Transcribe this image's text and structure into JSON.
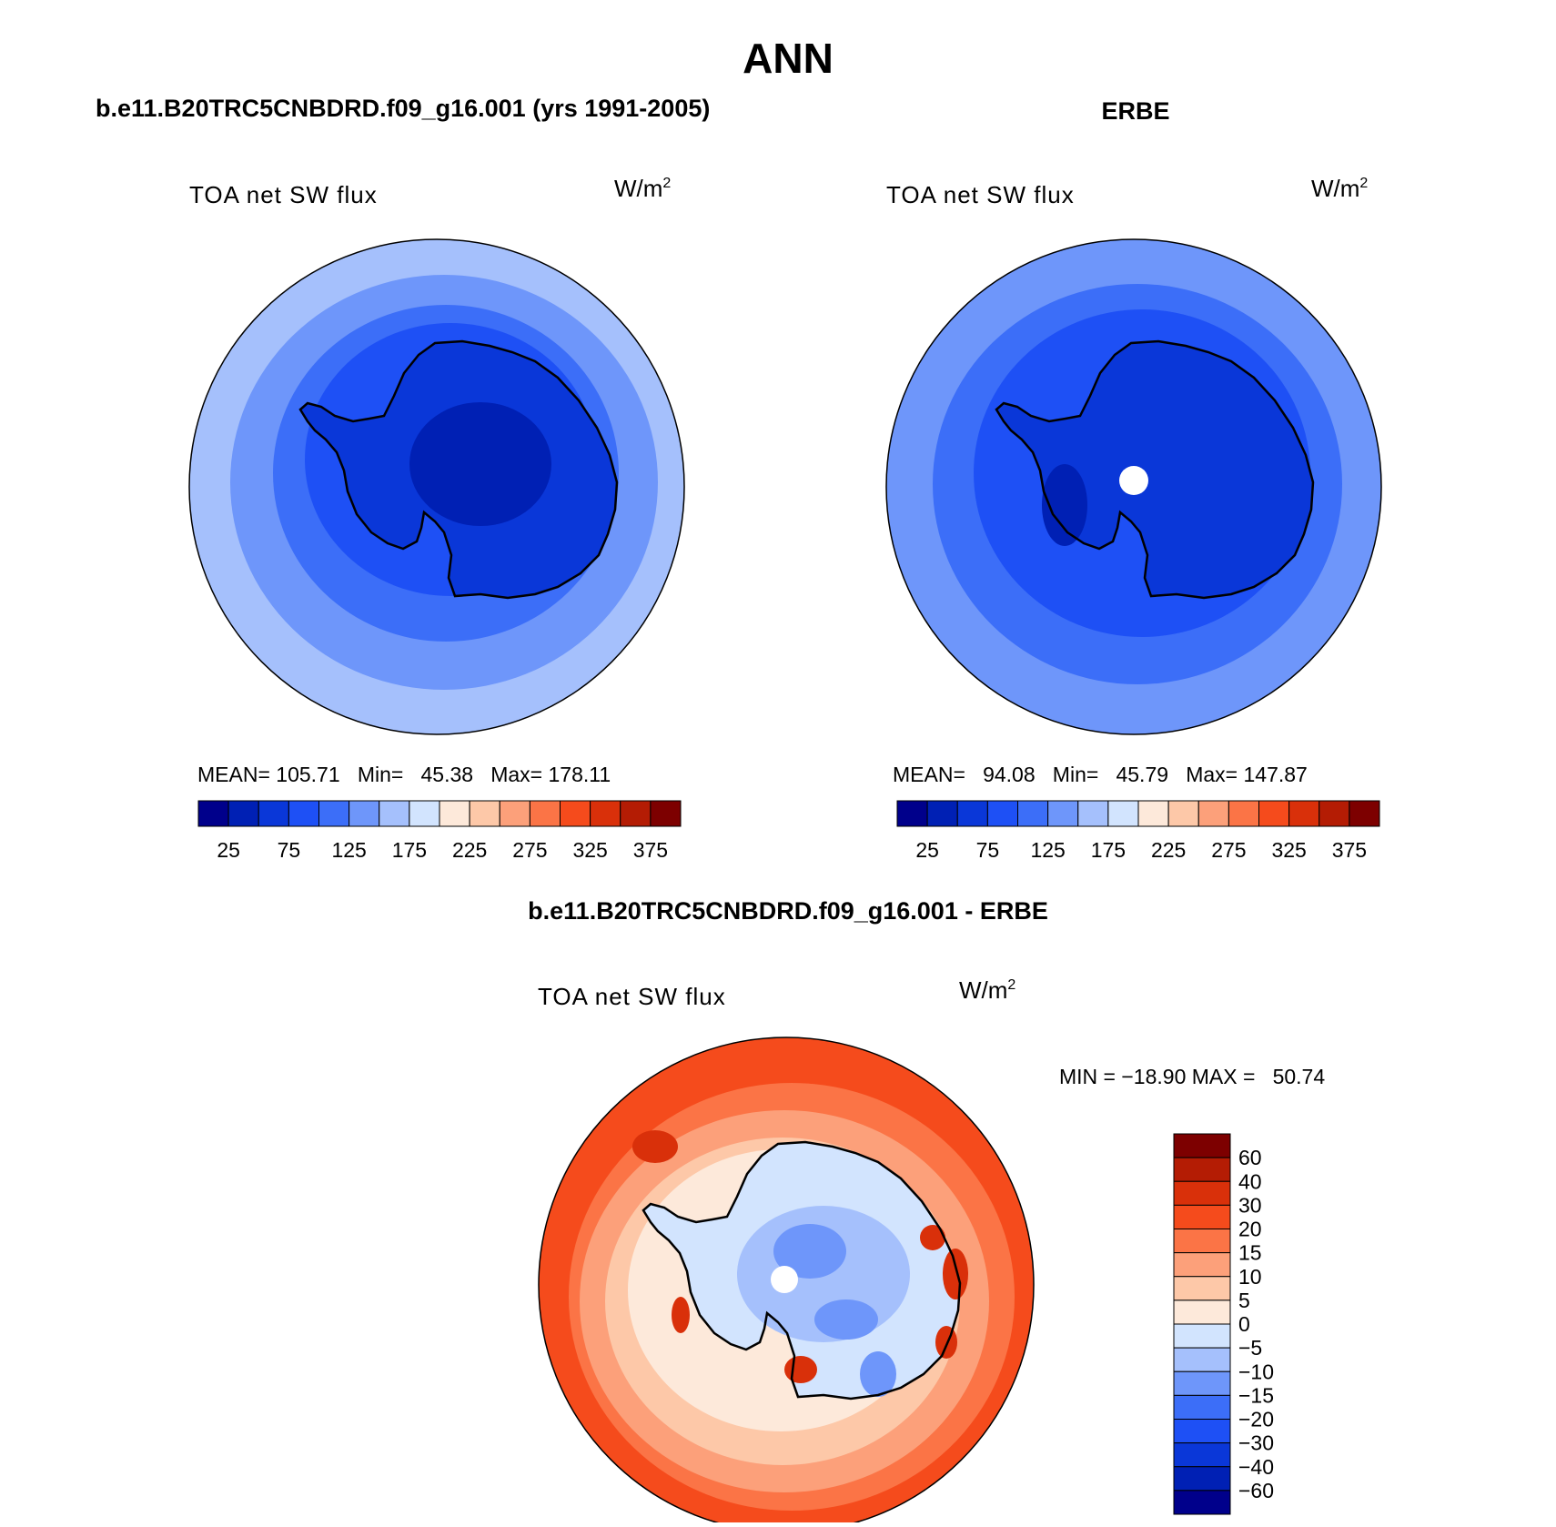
{
  "page_title": "ANN",
  "panels": [
    {
      "case_title": "b.e11.B20TRC5CNBDRD.f09_g16.001 (yrs 1991-2005)",
      "variable_label": "TOA net SW flux",
      "units_label": "W/m",
      "units_exponent": "2",
      "stats": {
        "mean_label": "MEAN=",
        "mean": "105.71",
        "min_label": "Min=",
        "min": "45.38",
        "max_label": "Max=",
        "max": "178.11"
      },
      "levels": [
        "25",
        "75",
        "125",
        "175",
        "225",
        "275",
        "325",
        "375"
      ]
    },
    {
      "case_title": "ERBE",
      "variable_label": "TOA net SW flux",
      "units_label": "W/m",
      "units_exponent": "2",
      "stats": {
        "mean_label": "MEAN=",
        "mean": "94.08",
        "min_label": "Min=",
        "min": "45.79",
        "max_label": "Max=",
        "max": "147.87"
      },
      "levels": [
        "25",
        "75",
        "125",
        "175",
        "225",
        "275",
        "325",
        "375"
      ]
    },
    {
      "case_title": "b.e11.B20TRC5CNBDRD.f09_g16.001 - ERBE",
      "variable_label": "TOA net SW flux",
      "units_label": "W/m",
      "units_exponent": "2",
      "minmax": "MIN = −18.90 MAX =   50.74",
      "levels": [
        "60",
        "40",
        "30",
        "20",
        "15",
        "10",
        "5",
        "0",
        "−5",
        "−10",
        "−15",
        "−20",
        "−30",
        "−40",
        "−60"
      ]
    }
  ],
  "colors": {
    "abs_scale": [
      "#00008b",
      "#0020b4",
      "#0a37d8",
      "#1e50f5",
      "#3c6ef8",
      "#6e96fa",
      "#a5c0fc",
      "#d2e4fe",
      "#fde9da",
      "#fdc8a8",
      "#fca07a",
      "#fb7446",
      "#f54b1c",
      "#d9300a",
      "#b41c04",
      "#7d0000"
    ],
    "diff_scale": [
      "#7d0000",
      "#b41c04",
      "#d9300a",
      "#f54b1c",
      "#fb7446",
      "#fca07a",
      "#fdc8a8",
      "#fde9da",
      "#d2e4fe",
      "#a5c0fc",
      "#6e96fa",
      "#3c6ef8",
      "#1e50f5",
      "#0a37d8",
      "#0020b4",
      "#00008b"
    ],
    "land_outline": "#000000"
  }
}
